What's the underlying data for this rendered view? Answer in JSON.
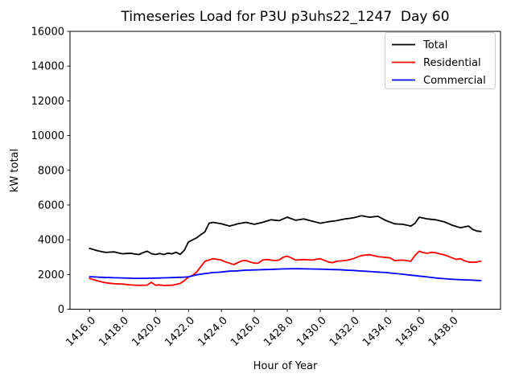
{
  "chart_data": {
    "type": "line",
    "title": "Timeseries Load for P3U p3uhs22_1247  Day 60",
    "xlabel": "Hour of Year",
    "ylabel": "kW total",
    "xlim": [
      1414.8125,
      1440.9375
    ],
    "ylim": [
      0,
      16000
    ],
    "xticks": [
      1416.0,
      1418.0,
      1420.0,
      1422.0,
      1424.0,
      1426.0,
      1428.0,
      1430.0,
      1432.0,
      1434.0,
      1436.0,
      1438.0
    ],
    "yticks": [
      0,
      2000,
      4000,
      6000,
      8000,
      10000,
      12000,
      14000,
      16000
    ],
    "grid": false,
    "x_start": 1416.0,
    "x_step": 0.25,
    "legend": {
      "position": "upper right",
      "entries": [
        "Total",
        "Residential",
        "Commercial"
      ]
    },
    "series": [
      {
        "name": "Total",
        "color": "#000000",
        "values": [
          3500,
          3430,
          3360,
          3310,
          3270,
          3290,
          3300,
          3240,
          3190,
          3210,
          3220,
          3175,
          3150,
          3260,
          3340,
          3200,
          3150,
          3210,
          3150,
          3230,
          3190,
          3280,
          3160,
          3400,
          3870,
          3990,
          4110,
          4290,
          4460,
          4950,
          5000,
          4960,
          4920,
          4850,
          4790,
          4850,
          4920,
          4960,
          5000,
          4940,
          4890,
          4940,
          5000,
          5075,
          5150,
          5125,
          5100,
          5200,
          5300,
          5210,
          5120,
          5160,
          5200,
          5135,
          5070,
          5010,
          4950,
          4995,
          5040,
          5070,
          5100,
          5150,
          5200,
          5230,
          5260,
          5320,
          5380,
          5340,
          5300,
          5325,
          5350,
          5225,
          5100,
          5010,
          4920,
          4905,
          4890,
          4840,
          4790,
          4950,
          5300,
          5250,
          5200,
          5175,
          5150,
          5095,
          5040,
          4940,
          4840,
          4765,
          4690,
          4740,
          4790,
          4600,
          4500,
          4480
        ]
      },
      {
        "name": "Residential",
        "color": "#ff0000",
        "values": [
          1780,
          1700,
          1630,
          1570,
          1520,
          1490,
          1470,
          1460,
          1450,
          1420,
          1400,
          1385,
          1370,
          1380,
          1390,
          1550,
          1380,
          1400,
          1365,
          1375,
          1380,
          1430,
          1480,
          1650,
          1850,
          1950,
          2140,
          2450,
          2760,
          2830,
          2910,
          2870,
          2830,
          2720,
          2650,
          2570,
          2680,
          2790,
          2800,
          2720,
          2650,
          2660,
          2830,
          2860,
          2830,
          2800,
          2830,
          2990,
          3050,
          2950,
          2830,
          2840,
          2860,
          2845,
          2830,
          2870,
          2910,
          2810,
          2720,
          2680,
          2760,
          2780,
          2800,
          2850,
          2910,
          3000,
          3090,
          3115,
          3140,
          3085,
          3030,
          3005,
          2980,
          2950,
          2800,
          2815,
          2830,
          2795,
          2760,
          3100,
          3340,
          3260,
          3220,
          3280,
          3250,
          3180,
          3140,
          3050,
          2955,
          2870,
          2910,
          2790,
          2720,
          2700,
          2720,
          2760
        ]
      },
      {
        "name": "Commercial",
        "color": "#0000ff",
        "values": [
          1870,
          1860,
          1850,
          1840,
          1830,
          1820,
          1810,
          1805,
          1800,
          1790,
          1785,
          1780,
          1780,
          1780,
          1785,
          1788,
          1790,
          1795,
          1805,
          1812,
          1820,
          1830,
          1840,
          1850,
          1860,
          1920,
          1980,
          2015,
          2050,
          2080,
          2110,
          2125,
          2140,
          2165,
          2190,
          2200,
          2210,
          2230,
          2250,
          2255,
          2260,
          2270,
          2280,
          2285,
          2290,
          2300,
          2310,
          2318,
          2325,
          2328,
          2330,
          2328,
          2325,
          2320,
          2315,
          2310,
          2305,
          2298,
          2290,
          2285,
          2280,
          2268,
          2255,
          2243,
          2230,
          2215,
          2200,
          2185,
          2170,
          2155,
          2140,
          2125,
          2110,
          2085,
          2060,
          2038,
          2015,
          1988,
          1960,
          1935,
          1910,
          1883,
          1855,
          1828,
          1800,
          1780,
          1760,
          1743,
          1725,
          1713,
          1700,
          1690,
          1680,
          1670,
          1660,
          1650
        ]
      }
    ]
  }
}
